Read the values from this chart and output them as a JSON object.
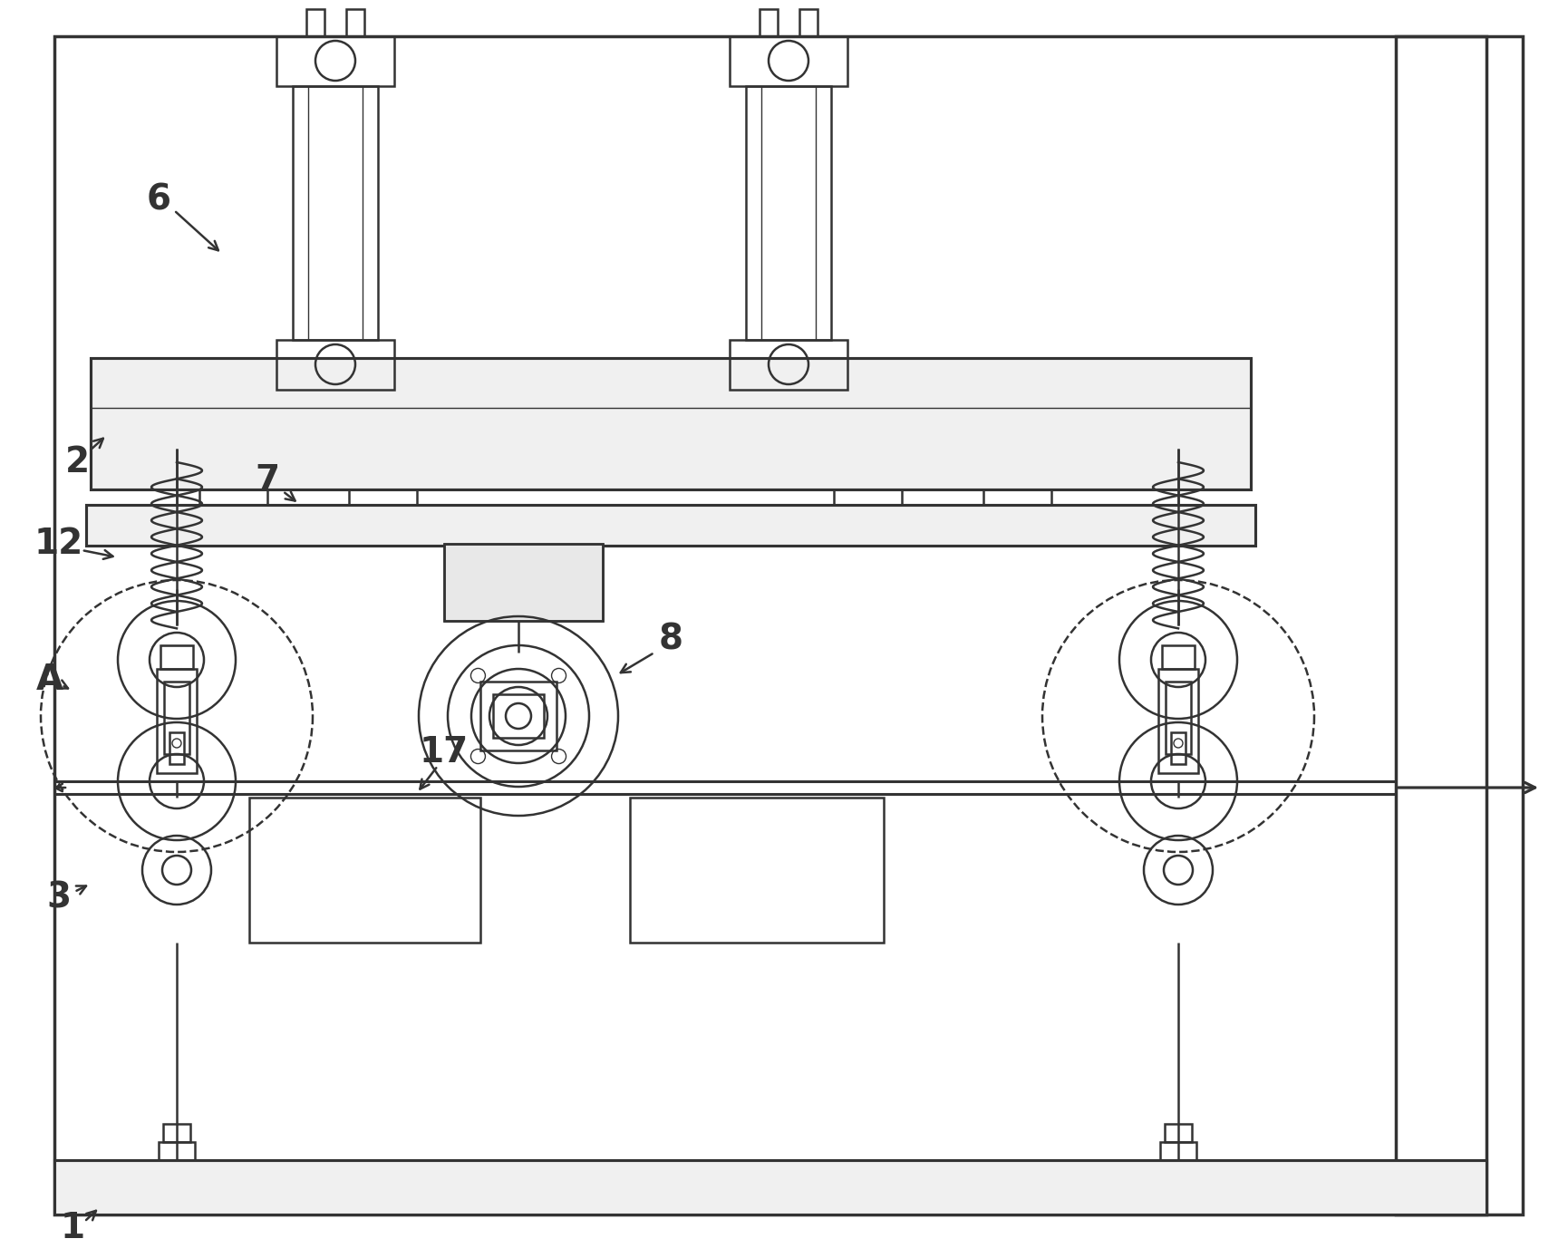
{
  "bg_color": "#ffffff",
  "line_color": "#333333",
  "lw": 1.8,
  "lw_thick": 2.2,
  "lw_thin": 1.0,
  "lw_border": 2.5
}
